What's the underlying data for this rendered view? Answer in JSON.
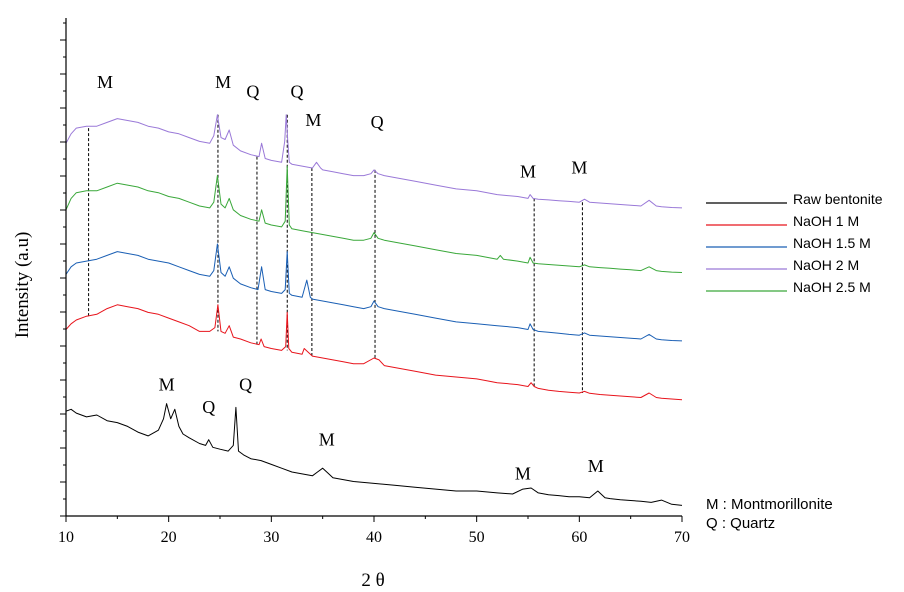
{
  "chart_data": {
    "type": "line",
    "xlabel": "2 θ",
    "ylabel": "Intensity (a.u)",
    "xlim": [
      10,
      70
    ],
    "xticks": [
      10,
      20,
      30,
      40,
      50,
      60,
      70
    ],
    "ylim": [
      0,
      100
    ],
    "legend": {
      "placement": "right",
      "entries": [
        {
          "name": "Raw bentonite",
          "color": "#000000"
        },
        {
          "name": "NaOH 1 M",
          "color": "#e8141c"
        },
        {
          "name": "NaOH 1.5 M",
          "color": "#1a5fb4"
        },
        {
          "name": "NaOH 2 M",
          "color": "#9a79d8"
        },
        {
          "name": "NaOH 2.5 M",
          "color": "#3aa83a"
        }
      ]
    },
    "footnote": [
      "M : Montmorillonite",
      "Q : Quartz"
    ],
    "series": [
      {
        "name": "Raw bentonite",
        "color": "#000000",
        "x": [
          10,
          10.5,
          11,
          12,
          13,
          14,
          15,
          16,
          17,
          18,
          19,
          19.5,
          19.8,
          20.2,
          20.6,
          21,
          21.4,
          22,
          23,
          23.6,
          23.9,
          24.3,
          25,
          25.8,
          26.3,
          26.55,
          26.8,
          27.3,
          28,
          29,
          30,
          31,
          32,
          33,
          34,
          34.5,
          35,
          35.6,
          36,
          37,
          38,
          40,
          42,
          44,
          46,
          48,
          50,
          52,
          53.5,
          54.5,
          55.3,
          56,
          57,
          58,
          59,
          60,
          61,
          61.8,
          62.5,
          63,
          64,
          65,
          66,
          67,
          68,
          69,
          70
        ],
        "y": [
          26,
          26.5,
          25.5,
          24.5,
          25,
          23.5,
          23,
          22,
          20.5,
          19.5,
          21,
          24,
          28,
          24,
          26.5,
          22,
          20,
          19,
          17.5,
          17,
          18.5,
          16.5,
          16,
          15.5,
          17,
          27,
          15.5,
          14.5,
          13.5,
          13,
          12,
          11,
          10,
          9.5,
          9,
          10,
          11,
          9.5,
          8.5,
          8,
          7.5,
          7,
          6.5,
          6,
          5.5,
          5,
          5,
          4.5,
          4.2,
          5.5,
          5.8,
          4.5,
          4,
          3.8,
          3.5,
          3.5,
          3.2,
          5,
          3.2,
          3,
          2.7,
          2.5,
          2.3,
          2,
          2.6,
          1.5,
          1.2
        ]
      },
      {
        "name": "NaOH 1 M",
        "color": "#e8141c",
        "x": [
          10,
          10.5,
          11,
          12,
          13,
          14,
          15,
          16,
          17,
          18,
          19,
          20,
          21,
          22,
          23,
          24,
          24.5,
          24.8,
          25.1,
          25.5,
          25.9,
          26.3,
          27,
          28,
          28.8,
          29,
          29.3,
          30,
          31,
          31.4,
          31.55,
          31.7,
          32,
          33,
          33.2,
          34,
          35,
          36,
          37,
          38,
          39,
          40,
          40.5,
          41,
          42,
          44,
          46,
          48,
          50,
          52,
          54,
          55,
          55.3,
          55.6,
          56,
          57,
          58,
          59,
          60,
          60.5,
          61,
          62,
          63,
          64,
          65,
          66,
          66.8,
          67.5,
          68,
          69,
          70
        ],
        "y": [
          47.5,
          49,
          50,
          51,
          51.5,
          53,
          54,
          53.5,
          53,
          52,
          51.5,
          50.5,
          49.5,
          48.5,
          47,
          47,
          48,
          54,
          47,
          46.5,
          48.5,
          45.5,
          45,
          44,
          43.5,
          45,
          43,
          42.5,
          42,
          43,
          52,
          42.5,
          41.5,
          41,
          42.5,
          40.5,
          40,
          39.5,
          39,
          38.5,
          38.5,
          40,
          39.5,
          38,
          37.5,
          36.5,
          35.5,
          35,
          34.5,
          33.5,
          33,
          32.5,
          33.5,
          32.5,
          32,
          31.5,
          31.2,
          31,
          30.8,
          31.2,
          30.7,
          30.4,
          30.2,
          30,
          29.8,
          29.6,
          30.8,
          29.6,
          29.4,
          29.2,
          29
        ]
      },
      {
        "name": "NaOH 1.5 M",
        "color": "#1a5fb4",
        "x": [
          10,
          10.5,
          11,
          12,
          13,
          14,
          15,
          16,
          17,
          18,
          19,
          20,
          21,
          22,
          23,
          24,
          24.4,
          24.75,
          25.1,
          25.5,
          25.9,
          26.3,
          27,
          28,
          28.7,
          29.05,
          29.4,
          30,
          31,
          31.35,
          31.55,
          31.75,
          32,
          33,
          33.45,
          33.8,
          34,
          35,
          36,
          37,
          38,
          39,
          39.7,
          40,
          40.4,
          41,
          42,
          44,
          46,
          48,
          50,
          52,
          54,
          55,
          55.2,
          55.5,
          56,
          57,
          58,
          59,
          60,
          60.5,
          61,
          62,
          63,
          64,
          65,
          66,
          66.8,
          67.5,
          68,
          69,
          70
        ],
        "y": [
          62,
          64,
          65,
          65.5,
          66,
          67,
          68,
          67.5,
          67,
          66,
          65.5,
          65,
          64,
          63,
          62,
          61.5,
          63,
          70,
          62.5,
          61.5,
          64,
          61,
          59.5,
          58.5,
          58,
          64,
          58,
          57.5,
          57,
          58,
          68,
          57,
          56.5,
          56,
          60.5,
          56,
          55.5,
          55,
          54.5,
          54,
          53.5,
          53,
          53.5,
          55,
          53.5,
          53,
          52.5,
          51.5,
          50.5,
          49.5,
          49,
          48.5,
          48,
          47.5,
          49,
          47.5,
          47,
          46.8,
          46.5,
          46.2,
          46,
          46.6,
          46,
          45.8,
          45.6,
          45.4,
          45.2,
          45,
          46.2,
          45,
          44.8,
          44.6,
          44.5
        ]
      },
      {
        "name": "NaOH 2.5 M",
        "color": "#3aa83a",
        "x": [
          10,
          10.5,
          11,
          12,
          13,
          14,
          15,
          16,
          17,
          18,
          19,
          20,
          21,
          22,
          23,
          24,
          24.4,
          24.75,
          25.1,
          25.5,
          25.9,
          26.3,
          27,
          28,
          28.8,
          29.05,
          29.4,
          30,
          31,
          31.35,
          31.55,
          31.75,
          32,
          33,
          34,
          35,
          36,
          37,
          38,
          39,
          39.7,
          40,
          40.4,
          41,
          42,
          44,
          46,
          48,
          50,
          52,
          52.3,
          52.6,
          54,
          55,
          55.2,
          55.5,
          56,
          57,
          58,
          59,
          60,
          60.5,
          61,
          62,
          63,
          64,
          65,
          66,
          66.8,
          67.5,
          68,
          69,
          70
        ],
        "y": [
          79,
          82,
          83.5,
          84,
          84,
          85,
          86,
          85.5,
          85,
          84,
          83.5,
          82.5,
          82,
          81,
          80,
          79.5,
          81,
          88,
          80.5,
          79.5,
          82,
          79,
          77.5,
          76.5,
          76,
          79,
          75.5,
          75,
          74.5,
          76,
          90.5,
          75,
          74,
          73.5,
          73,
          72.5,
          72,
          71.5,
          71,
          71,
          71.5,
          73,
          71.5,
          71,
          70.5,
          69.5,
          68.5,
          67.5,
          67,
          66,
          67,
          66,
          65.5,
          65,
          66.5,
          65,
          64.8,
          64.6,
          64.4,
          64.2,
          64,
          64.5,
          64,
          63.8,
          63.6,
          63.4,
          63.2,
          63,
          64,
          63,
          62.8,
          62.6,
          62.5
        ]
      },
      {
        "name": "NaOH 2 M",
        "color": "#9a79d8",
        "x": [
          10,
          10.5,
          11,
          12,
          13,
          14,
          15,
          16,
          17,
          18,
          19,
          20,
          21,
          22,
          23,
          24,
          24.4,
          24.75,
          25.1,
          25.5,
          25.9,
          26.3,
          27,
          28,
          28.8,
          29.05,
          29.4,
          30,
          31,
          31.3,
          31.45,
          31.6,
          31.75,
          32,
          33,
          34,
          34.4,
          34.8,
          35,
          36,
          37,
          38,
          39,
          39.7,
          40,
          40.4,
          41,
          42,
          44,
          46,
          48,
          50,
          52,
          54,
          55,
          55.2,
          55.5,
          56,
          57,
          58,
          59,
          60,
          60.5,
          61,
          62,
          63,
          64,
          65,
          66,
          66.8,
          67.5,
          68,
          69,
          70
        ],
        "y": [
          96.5,
          99,
          100.5,
          101,
          101,
          102,
          103,
          102.5,
          102,
          101,
          100.5,
          99.5,
          99,
          98,
          97,
          96.5,
          98.5,
          104,
          98,
          97.5,
          100,
          96,
          94.5,
          93.5,
          93,
          96.5,
          92.5,
          92,
          91.5,
          97,
          104,
          97,
          91.5,
          91,
          90.5,
          90,
          91.5,
          90,
          89.5,
          89,
          88.5,
          88,
          88,
          88.5,
          89.5,
          88.5,
          88,
          87.5,
          86.5,
          85.5,
          84.5,
          84,
          83,
          82.5,
          82,
          83,
          82,
          81.8,
          81.6,
          81.4,
          81.2,
          81,
          81.8,
          81,
          80.8,
          80.6,
          80.4,
          80.2,
          80,
          81.5,
          80,
          79.8,
          79.6,
          79.5
        ]
      }
    ],
    "peak_labels": [
      {
        "text": "M",
        "x": 13.8,
        "y": 111
      },
      {
        "text": "M",
        "x": 25.3,
        "y": 111
      },
      {
        "text": "Q",
        "x": 28.2,
        "y": 108.5
      },
      {
        "text": "Q",
        "x": 32.5,
        "y": 108.5
      },
      {
        "text": "M",
        "x": 34.1,
        "y": 101
      },
      {
        "text": "Q",
        "x": 40.3,
        "y": 100.5
      },
      {
        "text": "M",
        "x": 55.0,
        "y": 87.5
      },
      {
        "text": "M",
        "x": 60.0,
        "y": 88.5
      },
      {
        "text": "M",
        "x": 19.8,
        "y": 31.5
      },
      {
        "text": "Q",
        "x": 23.9,
        "y": 25.5
      },
      {
        "text": "Q",
        "x": 27.5,
        "y": 31.5
      },
      {
        "text": "M",
        "x": 35.4,
        "y": 17
      },
      {
        "text": "M",
        "x": 54.5,
        "y": 8
      },
      {
        "text": "M",
        "x": 61.6,
        "y": 10
      }
    ],
    "reference_lines": [
      {
        "x": 12.2,
        "y_from": 50.5,
        "y_to": 100.5
      },
      {
        "x": 24.8,
        "y_from": 47.0,
        "y_to": 104
      },
      {
        "x": 28.6,
        "y_from": 43.5,
        "y_to": 93
      },
      {
        "x": 31.55,
        "y_from": 42.0,
        "y_to": 104
      },
      {
        "x": 33.95,
        "y_from": 40.0,
        "y_to": 90
      },
      {
        "x": 40.1,
        "y_from": 39.5,
        "y_to": 89.5
      },
      {
        "x": 55.6,
        "y_from": 32.5,
        "y_to": 82
      },
      {
        "x": 60.3,
        "y_from": 30.8,
        "y_to": 81
      }
    ]
  }
}
